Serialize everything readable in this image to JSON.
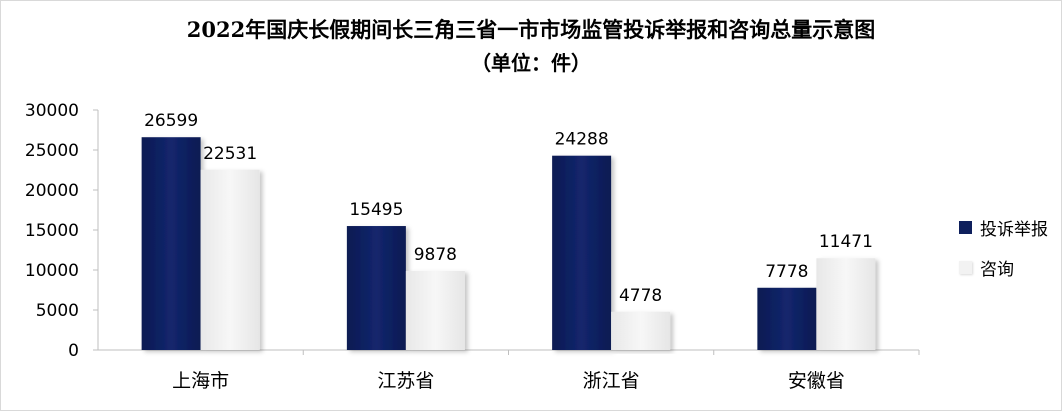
{
  "title": "2022年国庆长假期间长三角三省一市市场监管投诉举报和咨询总量示意图",
  "subtitle": "（单位：件）",
  "chart_data": {
    "type": "bar",
    "categories": [
      "上海市",
      "江苏省",
      "浙江省",
      "安徽省"
    ],
    "series": [
      {
        "name": "投诉举报",
        "values": [
          26599,
          15495,
          24288,
          7778
        ],
        "color": "#0e1f5c"
      },
      {
        "name": "咨询",
        "values": [
          22531,
          9878,
          4778,
          11471
        ],
        "color": "#f2f2f2"
      }
    ],
    "ylim": [
      0,
      30000
    ],
    "yticks": [
      0,
      5000,
      10000,
      15000,
      20000,
      25000,
      30000
    ],
    "data_labels": {
      "投诉举报": [
        "26599",
        "15495",
        "24288",
        "7778"
      ],
      "咨询": [
        "22531",
        "9878",
        "4778",
        "11471"
      ]
    },
    "grid": false,
    "legend": "right"
  }
}
